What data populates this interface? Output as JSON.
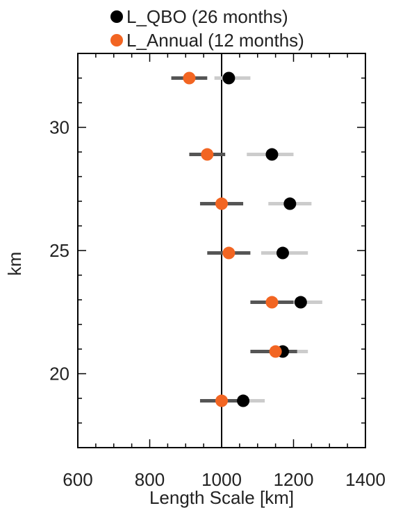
{
  "chart_data": {
    "type": "scatter",
    "xlabel": "Length Scale [km]",
    "ylabel": "km",
    "xlim": [
      600,
      1400
    ],
    "ylim": [
      17,
      33
    ],
    "x_ticks": [
      600,
      800,
      1000,
      1200,
      1400
    ],
    "x_tick_labels": [
      "600",
      "800",
      "1000",
      "1200",
      "1400"
    ],
    "y_ticks": [
      20,
      25,
      30
    ],
    "y_tick_labels": [
      "20",
      "25",
      "30"
    ],
    "reference_line_x": 1000,
    "legend_placement": "top",
    "series": [
      {
        "name": "L_QBO (26 months)",
        "color": "#000000",
        "errorbar_color": "#cccccc",
        "points": [
          {
            "y": 32.0,
            "x": 1020,
            "xmin": 980,
            "xmax": 1080
          },
          {
            "y": 28.9,
            "x": 1140,
            "xmin": 1070,
            "xmax": 1200
          },
          {
            "y": 26.9,
            "x": 1190,
            "xmin": 1130,
            "xmax": 1250
          },
          {
            "y": 24.9,
            "x": 1170,
            "xmin": 1110,
            "xmax": 1240
          },
          {
            "y": 22.9,
            "x": 1220,
            "xmin": 1160,
            "xmax": 1280
          },
          {
            "y": 20.9,
            "x": 1170,
            "xmin": 1110,
            "xmax": 1240
          },
          {
            "y": 18.9,
            "x": 1060,
            "xmin": 1000,
            "xmax": 1120
          }
        ]
      },
      {
        "name": "L_Annual (12 months)",
        "color": "#f26522",
        "errorbar_color": "#555555",
        "points": [
          {
            "y": 32.0,
            "x": 910,
            "xmin": 860,
            "xmax": 960
          },
          {
            "y": 28.9,
            "x": 960,
            "xmin": 910,
            "xmax": 1010
          },
          {
            "y": 26.9,
            "x": 1000,
            "xmin": 940,
            "xmax": 1060
          },
          {
            "y": 24.9,
            "x": 1020,
            "xmin": 960,
            "xmax": 1080
          },
          {
            "y": 22.9,
            "x": 1140,
            "xmin": 1080,
            "xmax": 1200
          },
          {
            "y": 20.9,
            "x": 1150,
            "xmin": 1080,
            "xmax": 1210
          },
          {
            "y": 18.9,
            "x": 1000,
            "xmin": 940,
            "xmax": 1060
          }
        ]
      }
    ]
  }
}
